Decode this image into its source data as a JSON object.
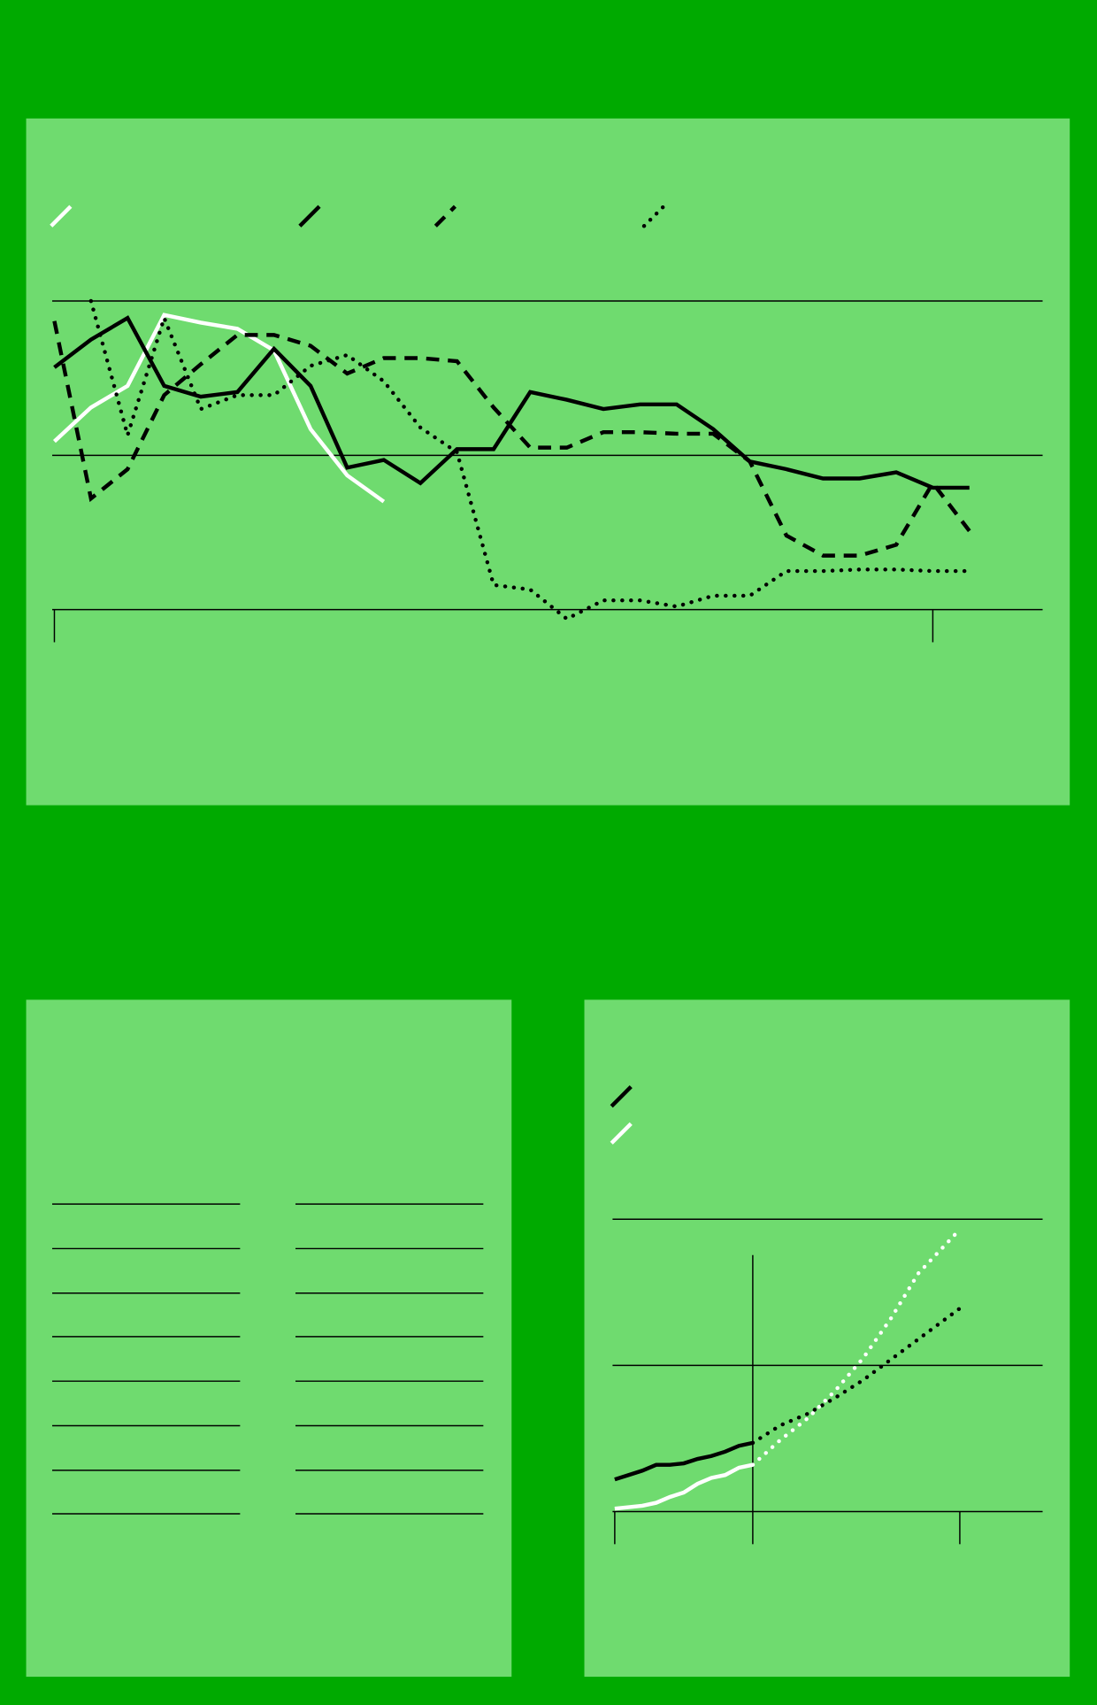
{
  "chart_data": [
    {
      "type": "line",
      "x": [
        0,
        1,
        2,
        3,
        4,
        5,
        6,
        7,
        8,
        9,
        10,
        11,
        12,
        13,
        14,
        15,
        16,
        17,
        18,
        19,
        20,
        21,
        22,
        23,
        24,
        25
      ],
      "xlim": [
        0,
        27
      ],
      "xticks": [
        0,
        24
      ],
      "ylim": [
        0,
        2
      ],
      "yticks": [
        0,
        1,
        2
      ],
      "grid": true,
      "series": [
        {
          "color": "#ffffff",
          "dash": "solid",
          "values": [
            1.09,
            1.31,
            1.45,
            1.91,
            1.86,
            1.82,
            1.68,
            1.17,
            0.87,
            0.7,
            null,
            null,
            null,
            null,
            null,
            null,
            null,
            null,
            null,
            null,
            null,
            null,
            null,
            null,
            null,
            null
          ]
        },
        {
          "color": "#000000",
          "dash": "solid",
          "values": [
            1.57,
            1.75,
            1.89,
            1.45,
            1.38,
            1.41,
            1.69,
            1.45,
            0.92,
            0.97,
            0.82,
            1.04,
            1.04,
            1.41,
            1.36,
            1.3,
            1.33,
            1.33,
            1.17,
            0.96,
            0.91,
            0.85,
            0.85,
            0.89,
            0.79,
            0.79
          ]
        },
        {
          "color": "#000000",
          "dash": "dashed",
          "values": [
            1.87,
            0.72,
            0.91,
            1.39,
            1.59,
            1.78,
            1.78,
            1.71,
            1.53,
            1.63,
            1.63,
            1.61,
            1.31,
            1.05,
            1.05,
            1.15,
            1.15,
            1.14,
            1.14,
            0.96,
            0.48,
            0.35,
            0.35,
            0.42,
            0.82,
            0.51
          ]
        },
        {
          "color": "#000000",
          "dash": "dotted",
          "values": [
            null,
            2.0,
            1.13,
            1.89,
            1.3,
            1.39,
            1.39,
            1.58,
            1.65,
            1.48,
            1.18,
            1.02,
            0.16,
            0.13,
            -0.06,
            0.06,
            0.06,
            0.02,
            0.09,
            0.09,
            0.25,
            0.25,
            0.26,
            0.26,
            0.25,
            0.25
          ]
        }
      ]
    },
    {
      "type": "line",
      "xlim": [
        0,
        31
      ],
      "xticks": [
        0,
        10,
        25
      ],
      "ylim": [
        0,
        2
      ],
      "yticks": [
        0,
        1,
        2
      ],
      "grid": true,
      "series": [
        {
          "color": "#000000",
          "dash": "solid",
          "x": [
            0,
            1,
            2,
            3,
            4,
            5,
            6,
            7,
            8,
            9,
            10
          ],
          "values": [
            0.22,
            0.25,
            0.28,
            0.32,
            0.32,
            0.33,
            0.36,
            0.38,
            0.41,
            0.45,
            0.47
          ]
        },
        {
          "color": "#ffffff",
          "dash": "solid",
          "x": [
            0,
            1,
            2,
            3,
            4,
            5,
            6,
            7,
            8,
            9,
            10
          ],
          "values": [
            0.02,
            0.03,
            0.04,
            0.06,
            0.1,
            0.13,
            0.19,
            0.23,
            0.25,
            0.3,
            0.32
          ]
        },
        {
          "color": "#000000",
          "dash": "dotted",
          "x": [
            10,
            12,
            14,
            16,
            18,
            20,
            22,
            25
          ],
          "values": [
            0.47,
            0.59,
            0.67,
            0.78,
            0.9,
            1.04,
            1.18,
            1.39
          ]
        },
        {
          "color": "#ffffff",
          "dash": "dotted",
          "x": [
            10,
            12,
            14,
            16,
            18,
            20,
            22,
            25
          ],
          "values": [
            0.32,
            0.49,
            0.64,
            0.83,
            1.05,
            1.32,
            1.63,
            1.93
          ]
        }
      ]
    }
  ]
}
